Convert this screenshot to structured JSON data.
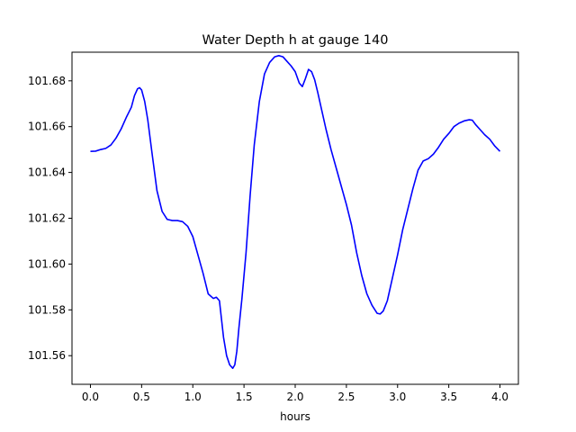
{
  "chart_data": {
    "type": "line",
    "title": "Water Depth h at gauge 140",
    "xlabel": "hours",
    "ylabel": "",
    "xlim": [
      -0.18,
      4.18
    ],
    "ylim": [
      101.5475,
      101.6925
    ],
    "xticks": [
      "0.0",
      "0.5",
      "1.0",
      "1.5",
      "2.0",
      "2.5",
      "3.0",
      "3.5",
      "4.0"
    ],
    "yticks": [
      "101.56",
      "101.58",
      "101.60",
      "101.62",
      "101.64",
      "101.66",
      "101.68"
    ],
    "grid": false,
    "series": [
      {
        "color": "#0000ff",
        "x": [
          0.0,
          0.05,
          0.1,
          0.15,
          0.2,
          0.25,
          0.3,
          0.35,
          0.4,
          0.43,
          0.46,
          0.48,
          0.5,
          0.53,
          0.56,
          0.6,
          0.65,
          0.7,
          0.75,
          0.8,
          0.85,
          0.9,
          0.95,
          1.0,
          1.05,
          1.1,
          1.15,
          1.2,
          1.23,
          1.26,
          1.28,
          1.3,
          1.33,
          1.36,
          1.39,
          1.41,
          1.43,
          1.45,
          1.48,
          1.52,
          1.56,
          1.6,
          1.65,
          1.7,
          1.75,
          1.8,
          1.84,
          1.88,
          1.92,
          1.96,
          2.0,
          2.04,
          2.07,
          2.1,
          2.13,
          2.16,
          2.19,
          2.22,
          2.26,
          2.3,
          2.35,
          2.4,
          2.45,
          2.5,
          2.55,
          2.6,
          2.65,
          2.7,
          2.75,
          2.8,
          2.83,
          2.86,
          2.9,
          2.95,
          3.0,
          3.05,
          3.1,
          3.15,
          3.2,
          3.25,
          3.3,
          3.35,
          3.4,
          3.45,
          3.5,
          3.55,
          3.6,
          3.65,
          3.7,
          3.73,
          3.76,
          3.8,
          3.85,
          3.9,
          3.95,
          4.0
        ],
        "y": [
          101.6492,
          101.6493,
          101.65,
          101.6505,
          101.652,
          101.655,
          101.659,
          101.664,
          101.6685,
          101.6735,
          101.6765,
          101.677,
          101.676,
          101.671,
          101.663,
          101.649,
          101.632,
          101.623,
          101.6195,
          101.619,
          101.619,
          101.6185,
          101.6165,
          101.612,
          101.604,
          101.596,
          101.587,
          101.585,
          101.5855,
          101.584,
          101.576,
          101.568,
          101.56,
          101.556,
          101.5545,
          101.556,
          101.562,
          101.572,
          101.585,
          101.605,
          101.63,
          101.652,
          101.671,
          101.683,
          101.688,
          101.6905,
          101.691,
          101.6905,
          101.6885,
          101.6865,
          101.684,
          101.679,
          101.6775,
          101.681,
          101.685,
          101.684,
          101.6805,
          101.675,
          101.667,
          101.659,
          101.65,
          101.642,
          101.634,
          101.626,
          101.617,
          101.605,
          101.595,
          101.587,
          101.582,
          101.5785,
          101.5782,
          101.5795,
          101.584,
          101.594,
          101.604,
          101.615,
          101.624,
          101.633,
          101.641,
          101.645,
          101.646,
          101.648,
          101.651,
          101.6545,
          101.657,
          101.66,
          101.6615,
          101.6625,
          101.663,
          101.6628,
          101.661,
          101.659,
          101.6565,
          101.6545,
          101.6515,
          101.6492
        ]
      }
    ]
  }
}
